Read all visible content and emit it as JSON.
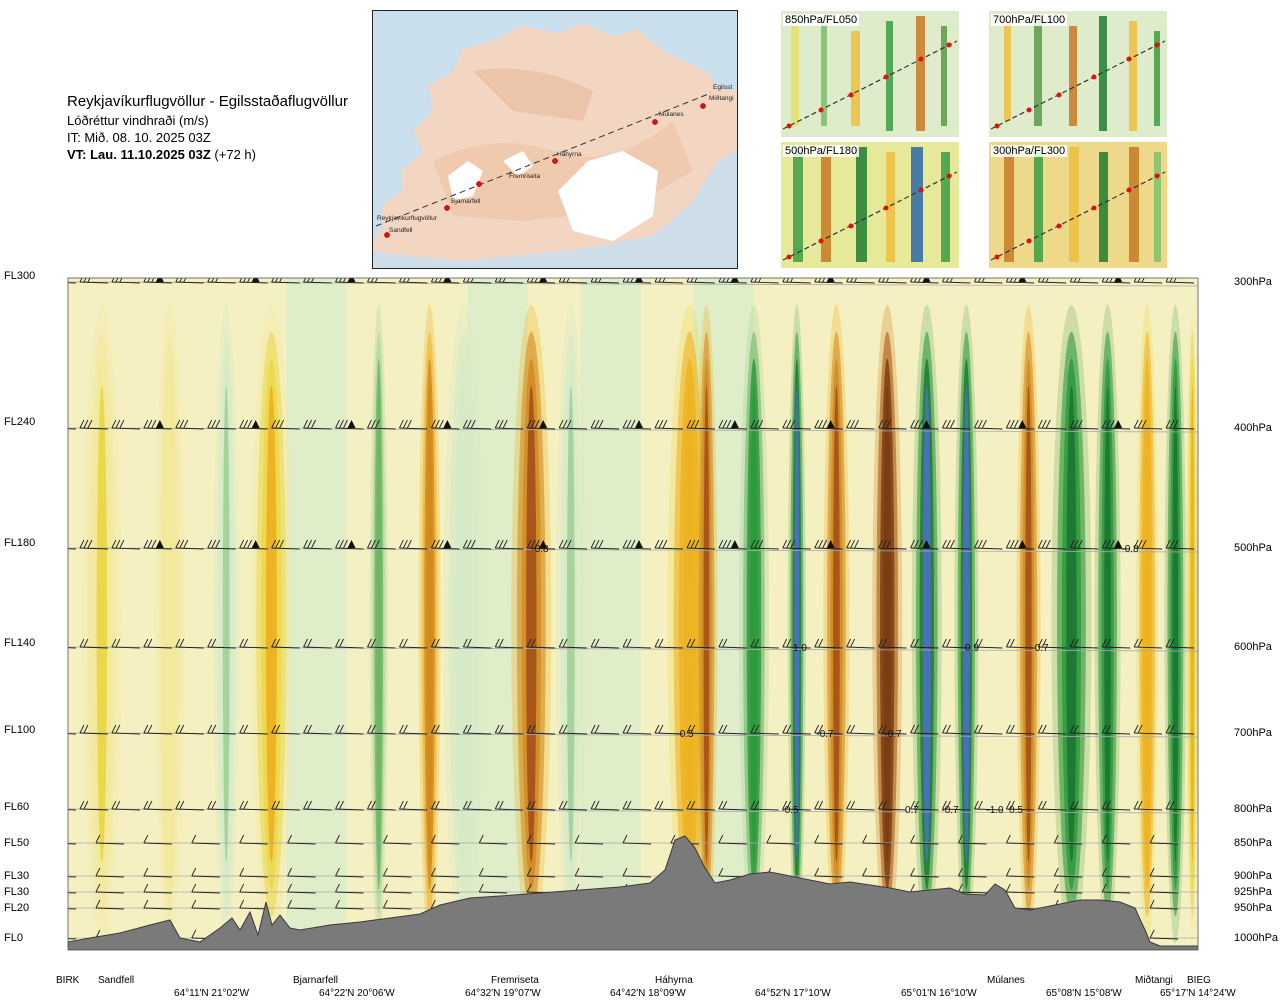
{
  "header": {
    "title": "Reykjavíkurflugvöllur - Egilsstaðaflugvöllur",
    "variable": "Lóðréttur vindhraði (m/s)",
    "it": "IT: Mið. 08. 10. 2025 03Z",
    "vt_strong": "VT: Lau. 11.10.2025 03Z",
    "vt_rest": " (+72 h)"
  },
  "map": {
    "points": [
      "Reykjavíkurflugvöllur",
      "Sandfell",
      "Bjarnarfell",
      "Fremriseta",
      "Háhyrna",
      "Múlanes",
      "Egilsst",
      "Miðtangi"
    ]
  },
  "mini_panels": [
    {
      "label": "850hPa/FL050"
    },
    {
      "label": "700hPa/FL100"
    },
    {
      "label": "500hPa/FL180"
    },
    {
      "label": "300hPa/FL300"
    }
  ],
  "left_levels": [
    "FL300",
    "FL240",
    "FL180",
    "FL140",
    "FL100",
    "FL60",
    "FL50",
    "FL30",
    "FL30",
    "FL20",
    "FL0"
  ],
  "right_levels": [
    "300hPa",
    "400hPa",
    "500hPa",
    "600hPa",
    "700hPa",
    "800hPa",
    "850hPa",
    "900hPa",
    "925hPa",
    "950hPa",
    "1000hPa"
  ],
  "bottom_names": [
    "BIRK",
    "Sandfell",
    "Bjarnarfell",
    "Fremriseta",
    "Háhyrna",
    "Múlanes",
    "Miðtangi",
    "BIEG"
  ],
  "bottom_coords": [
    "64°11'N 21°02'W",
    "64°22'N 20°06'W",
    "64°32'N 19°07'W",
    "64°42'N 18°09'W",
    "64°52'N 17°10'W",
    "65°01'N 16°10'W",
    "65°08'N 15°08'W",
    "65°17'N 14°24'W"
  ],
  "chart_data": {
    "type": "heatmap",
    "title": "Reykjavíkurflugvöllur - Egilsstaðaflugvöllur",
    "variable": "Lóðréttur vindhraði (m/s)",
    "x_points": [
      "BIRK",
      "Sandfell",
      "Bjarnarfell",
      "Fremriseta",
      "Háhyrna",
      "Múlanes",
      "Miðtangi",
      "BIEG"
    ],
    "y_levels_hpa": [
      300,
      400,
      500,
      600,
      700,
      800,
      850,
      900,
      925,
      950,
      1000
    ],
    "color_sign": {
      "positive": "warm (yellow-brown)",
      "negative": "cool (green-blue)"
    },
    "annotations": [
      {
        "text": "-0.8",
        "level_hpa": 500
      },
      {
        "text": "-0.8",
        "level_hpa": 500
      },
      {
        "text": "1.0",
        "level_hpa": 600
      },
      {
        "text": "0.9",
        "level_hpa": 600
      },
      {
        "text": "-0.7",
        "level_hpa": 600
      },
      {
        "text": "-0.5",
        "level_hpa": 700
      },
      {
        "text": "-0.7",
        "level_hpa": 700
      },
      {
        "text": "-0.7",
        "level_hpa": 700
      },
      {
        "text": "-0.5",
        "level_hpa": 800
      },
      {
        "text": "0.7",
        "level_hpa": 800
      },
      {
        "text": "-0.7",
        "level_hpa": 800
      },
      {
        "text": "-1.0",
        "level_hpa": 800
      },
      {
        "text": "0.5",
        "level_hpa": 800
      }
    ],
    "bands": [
      {
        "v": 0.3
      },
      {
        "v": 0.25
      },
      {
        "v": -0.3
      },
      {
        "v": 0.5
      },
      {
        "v": -0.6
      },
      {
        "v": 1.0
      },
      {
        "v": -0.2
      },
      {
        "v": 1.2
      },
      {
        "v": -0.3
      },
      {
        "v": 0.7
      },
      {
        "v": 1.2
      },
      {
        "v": -0.9
      },
      {
        "v": -1.3
      },
      {
        "v": 1.1
      },
      {
        "v": 1.6
      },
      {
        "v": -1.3
      },
      {
        "v": -1.3
      },
      {
        "v": 1.2
      },
      {
        "v": -1.1
      },
      {
        "v": -1.1
      },
      {
        "v": 0.7
      },
      {
        "v": -1.1
      },
      {
        "v": 0.5
      }
    ]
  }
}
